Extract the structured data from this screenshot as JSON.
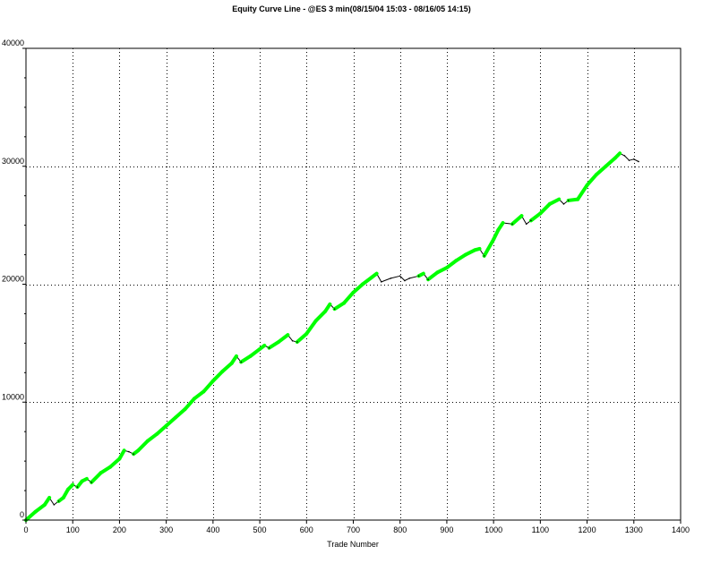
{
  "chart_data": {
    "type": "line",
    "title": "Equity Curve Line - @ES 3 min(08/15/04 15:03 - 08/16/05 14:15)",
    "xlabel": "Trade Number",
    "ylabel": "",
    "xlim": [
      0,
      1400
    ],
    "ylim": [
      0,
      40000
    ],
    "x_ticks": [
      0,
      100,
      200,
      300,
      400,
      500,
      600,
      700,
      800,
      900,
      1000,
      1100,
      1200,
      1300,
      1400
    ],
    "y_ticks": [
      0,
      10000,
      20000,
      30000,
      40000
    ],
    "grid": true,
    "colors": {
      "new_high": "#00ff00",
      "drawdown": "#000000",
      "grid": "#000000",
      "frame": "#000000"
    },
    "series": [
      {
        "x": [
          0,
          20,
          40,
          50,
          60,
          70,
          80,
          90,
          100,
          110,
          120,
          130,
          140,
          160,
          180,
          200,
          210,
          220,
          230,
          240,
          260,
          280,
          300,
          320,
          340,
          360,
          380,
          400,
          420,
          440,
          450,
          460,
          480,
          500,
          510,
          520,
          540,
          560,
          570,
          580,
          600,
          620,
          640,
          650,
          660,
          680,
          700,
          720,
          740,
          750,
          760,
          780,
          800,
          810,
          820,
          840,
          850,
          860,
          880,
          900,
          920,
          940,
          960,
          970,
          980,
          1000,
          1010,
          1020,
          1040,
          1060,
          1070,
          1080,
          1100,
          1120,
          1140,
          1150,
          1160,
          1180,
          1200,
          1220,
          1240,
          1260,
          1270,
          1280,
          1290,
          1300,
          1310
        ],
        "values": [
          0,
          700,
          1300,
          1900,
          1300,
          1600,
          1900,
          2600,
          3000,
          2800,
          3300,
          3500,
          3200,
          4000,
          4500,
          5200,
          5900,
          5800,
          5600,
          5900,
          6700,
          7300,
          8000,
          8700,
          9400,
          10300,
          10900,
          11800,
          12600,
          13300,
          13900,
          13400,
          13900,
          14500,
          14800,
          14600,
          15100,
          15700,
          15200,
          15100,
          15800,
          16900,
          17700,
          18300,
          17900,
          18400,
          19300,
          20000,
          20600,
          20900,
          20200,
          20500,
          20700,
          20300,
          20500,
          20700,
          20900,
          20400,
          21000,
          21400,
          22000,
          22500,
          22900,
          23000,
          22400,
          23800,
          24600,
          25200,
          25100,
          25800,
          25100,
          25400,
          26000,
          26800,
          27200,
          26800,
          27100,
          27200,
          28400,
          29300,
          30000,
          30700,
          31100,
          30900,
          30500,
          30600,
          30400
        ]
      }
    ]
  }
}
